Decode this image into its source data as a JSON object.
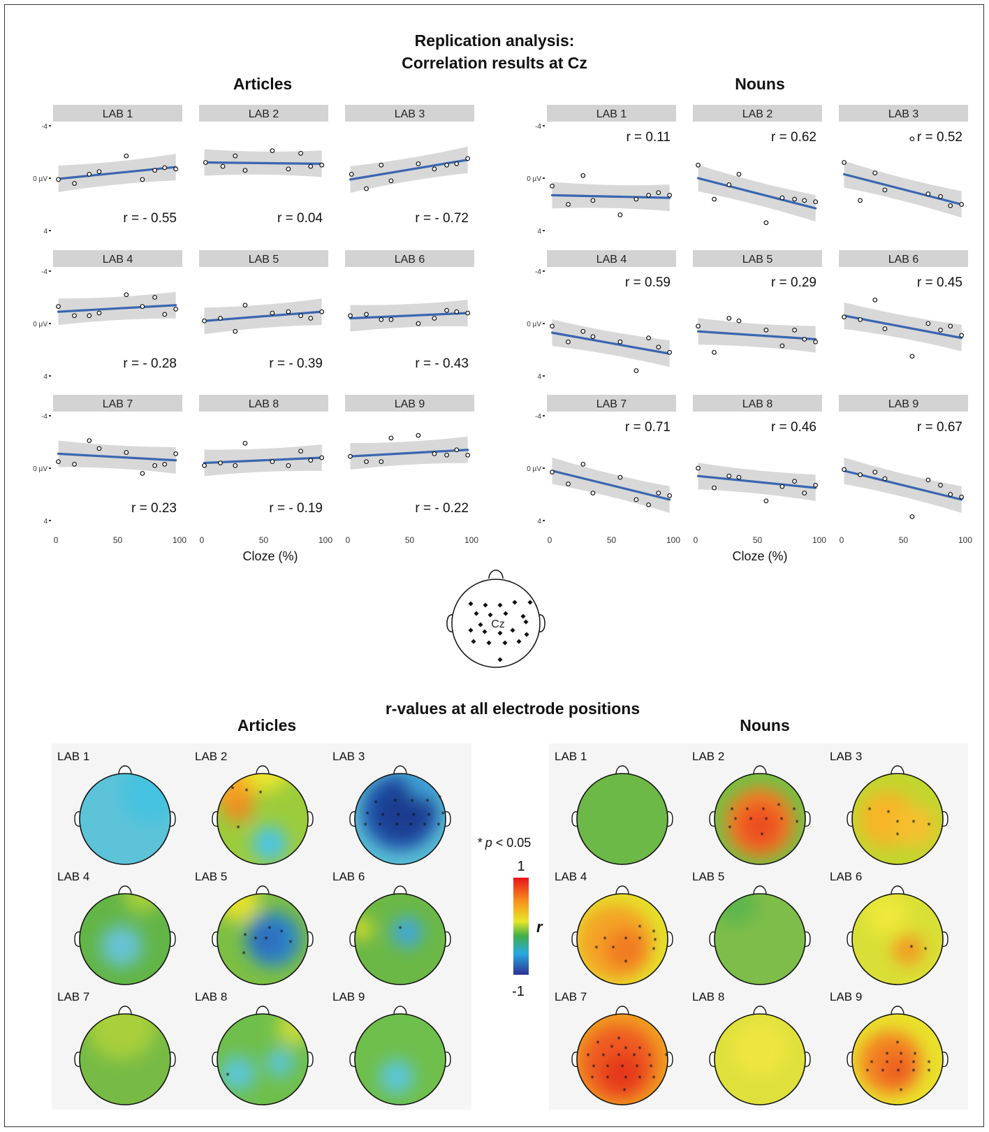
{
  "titles": {
    "main_line1": "Replication analysis:",
    "main_line2": "Correlation results at Cz",
    "articles": "Articles",
    "nouns": "Nouns",
    "topo_title": "r-values at all electrode positions",
    "xlabel": "Cloze (%)",
    "cz_label": "Cz"
  },
  "legend": {
    "sig_star": "*",
    "sig_p": "p",
    "sig_rest": " < 0.05",
    "max": "1",
    "min": "-1",
    "var": "r"
  },
  "colors": {
    "fit_line": "#3a66b0",
    "ci_band": "#d4d4d4",
    "strip": "#d3d3d3",
    "panel_bg": "#f5f5f5"
  },
  "chart_data": [
    {
      "type": "scatter",
      "title": "Articles",
      "xlabel": "Cloze (%)",
      "ylabel": "",
      "xlim": [
        0,
        100
      ],
      "ylim": [
        -4,
        4
      ],
      "y_reversed": true,
      "y_ticks": [
        "-4",
        "0 µV",
        "4"
      ],
      "x_ticks": [
        "0",
        "50",
        "100"
      ],
      "panels": [
        {
          "label": "LAB 1",
          "r": "r = - 0.55",
          "pos": "bottom",
          "x": [
            2,
            15,
            27,
            35,
            57,
            70,
            80,
            88,
            97
          ],
          "y": [
            0.1,
            0.4,
            -0.3,
            -0.5,
            -1.7,
            0.1,
            -0.6,
            -0.8,
            -0.7
          ],
          "fit": [
            0.05,
            -0.85
          ]
        },
        {
          "label": "LAB 2",
          "r": "r = 0.04",
          "pos": "bottom",
          "x": [
            3,
            17,
            27,
            35,
            57,
            70,
            80,
            88,
            97
          ],
          "y": [
            -1.2,
            -0.9,
            -1.7,
            -0.6,
            -2.1,
            -0.7,
            -1.9,
            -0.9,
            -1.0
          ],
          "fit": [
            -1.2,
            -1.1
          ]
        },
        {
          "label": "LAB 3",
          "r": "r = - 0.72",
          "pos": "bottom",
          "x": [
            3,
            15,
            27,
            35,
            57,
            70,
            80,
            88,
            97
          ],
          "y": [
            -0.3,
            0.8,
            -1.0,
            0.2,
            -1.1,
            -0.7,
            -1.0,
            -1.1,
            -1.5
          ],
          "fit": [
            0.1,
            -1.4
          ]
        },
        {
          "label": "LAB 4",
          "r": "r = - 0.28",
          "pos": "bottom",
          "x": [
            2,
            15,
            27,
            35,
            57,
            70,
            80,
            88,
            97
          ],
          "y": [
            -1.3,
            -0.6,
            -0.6,
            -0.8,
            -2.2,
            -1.3,
            -2.0,
            -0.7,
            -1.1
          ],
          "fit": [
            -0.9,
            -1.4
          ]
        },
        {
          "label": "LAB 5",
          "r": "r = - 0.39",
          "pos": "bottom",
          "x": [
            2,
            15,
            27,
            35,
            57,
            70,
            80,
            88,
            97
          ],
          "y": [
            -0.2,
            -0.4,
            0.6,
            -1.4,
            -0.8,
            -0.9,
            -0.6,
            -0.4,
            -0.9
          ],
          "fit": [
            -0.2,
            -0.9
          ]
        },
        {
          "label": "LAB 6",
          "r": "r = - 0.43",
          "pos": "bottom",
          "x": [
            2,
            15,
            27,
            35,
            57,
            70,
            80,
            88,
            97
          ],
          "y": [
            -0.6,
            -0.7,
            -0.3,
            -0.3,
            0.0,
            -0.4,
            -1.0,
            -0.9,
            -0.8
          ],
          "fit": [
            -0.4,
            -0.8
          ]
        },
        {
          "label": "LAB 7",
          "r": "r = 0.23",
          "pos": "bottom",
          "x": [
            2,
            15,
            27,
            35,
            57,
            70,
            80,
            88,
            97
          ],
          "y": [
            -0.5,
            -0.3,
            -2.1,
            -1.5,
            -1.2,
            0.4,
            -0.2,
            -0.3,
            -1.1
          ],
          "fit": [
            -1.1,
            -0.6
          ]
        },
        {
          "label": "LAB 8",
          "r": "r = - 0.19",
          "pos": "bottom",
          "x": [
            2,
            15,
            27,
            35,
            57,
            70,
            80,
            88,
            97
          ],
          "y": [
            -0.2,
            -0.4,
            -0.2,
            -1.9,
            -0.5,
            -0.2,
            -1.3,
            -0.6,
            -0.8
          ],
          "fit": [
            -0.4,
            -0.8
          ]
        },
        {
          "label": "LAB 9",
          "r": "r = - 0.22",
          "pos": "bottom",
          "x": [
            2,
            15,
            27,
            35,
            57,
            70,
            80,
            88,
            97
          ],
          "y": [
            -0.9,
            -0.5,
            -0.5,
            -2.3,
            -2.5,
            -1.1,
            -1.0,
            -1.4,
            -1.0
          ],
          "fit": [
            -0.9,
            -1.4
          ]
        }
      ]
    },
    {
      "type": "scatter",
      "title": "Nouns",
      "xlabel": "Cloze (%)",
      "ylabel": "",
      "xlim": [
        0,
        100
      ],
      "ylim": [
        -4,
        4
      ],
      "y_reversed": true,
      "y_ticks": [
        "-4",
        "0 µV",
        "4"
      ],
      "x_ticks": [
        "0",
        "50",
        "100"
      ],
      "panels": [
        {
          "label": "LAB 1",
          "r": "r = 0.11",
          "pos": "top",
          "x": [
            2,
            15,
            27,
            35,
            57,
            70,
            80,
            88,
            97
          ],
          "y": [
            0.6,
            2.0,
            -0.2,
            1.7,
            2.8,
            1.6,
            1.3,
            1.1,
            1.3
          ],
          "fit": [
            1.3,
            1.5
          ]
        },
        {
          "label": "LAB 2",
          "r": "r = 0.62",
          "pos": "top",
          "x": [
            2,
            15,
            27,
            35,
            57,
            70,
            80,
            88,
            97
          ],
          "y": [
            -1.0,
            1.6,
            0.5,
            -0.3,
            3.4,
            1.5,
            1.6,
            1.7,
            1.8
          ],
          "fit": [
            0.0,
            2.3
          ]
        },
        {
          "label": "LAB 3",
          "r": "r = 0.52",
          "pos": "top",
          "x": [
            2,
            15,
            27,
            35,
            57,
            70,
            80,
            88,
            97
          ],
          "y": [
            -1.2,
            1.7,
            -0.4,
            0.9,
            -3.0,
            1.2,
            1.4,
            2.1,
            2.0
          ],
          "fit": [
            -0.3,
            2.0
          ]
        },
        {
          "label": "LAB 4",
          "r": "r = 0.59",
          "pos": "top",
          "x": [
            2,
            15,
            27,
            35,
            57,
            70,
            80,
            88,
            97
          ],
          "y": [
            0.2,
            1.4,
            0.6,
            1.0,
            1.4,
            3.6,
            1.1,
            1.8,
            2.2
          ],
          "fit": [
            0.7,
            2.3
          ]
        },
        {
          "label": "LAB 5",
          "r": "r = 0.29",
          "pos": "top",
          "x": [
            2,
            15,
            27,
            35,
            57,
            70,
            80,
            88,
            97
          ],
          "y": [
            0.2,
            2.2,
            -0.4,
            -0.2,
            0.5,
            1.7,
            0.5,
            1.2,
            1.4
          ],
          "fit": [
            0.6,
            1.2
          ]
        },
        {
          "label": "LAB 6",
          "r": "r = 0.45",
          "pos": "top",
          "x": [
            2,
            15,
            27,
            35,
            57,
            70,
            80,
            88,
            97
          ],
          "y": [
            -0.5,
            -0.3,
            -1.8,
            0.4,
            2.5,
            0.0,
            0.5,
            0.2,
            0.9
          ],
          "fit": [
            -0.6,
            1.1
          ]
        },
        {
          "label": "LAB 7",
          "r": "r = 0.71",
          "pos": "top",
          "x": [
            2,
            15,
            27,
            35,
            57,
            70,
            80,
            88,
            97
          ],
          "y": [
            0.3,
            1.2,
            -0.3,
            1.9,
            0.7,
            2.4,
            2.8,
            1.9,
            2.1
          ],
          "fit": [
            0.2,
            2.4
          ]
        },
        {
          "label": "LAB 8",
          "r": "r = 0.46",
          "pos": "top",
          "x": [
            2,
            15,
            27,
            35,
            57,
            70,
            80,
            88,
            97
          ],
          "y": [
            0.0,
            1.5,
            0.6,
            0.7,
            2.5,
            1.4,
            1.0,
            1.9,
            1.3
          ],
          "fit": [
            0.6,
            1.5
          ]
        },
        {
          "label": "LAB 9",
          "r": "r = 0.67",
          "pos": "top",
          "x": [
            2,
            15,
            27,
            35,
            57,
            70,
            80,
            88,
            97
          ],
          "y": [
            0.1,
            0.5,
            0.3,
            0.8,
            3.7,
            0.9,
            1.3,
            2.0,
            2.2
          ],
          "fit": [
            0.2,
            2.4
          ]
        }
      ]
    }
  ],
  "topo_labels": [
    "LAB 1",
    "LAB 2",
    "LAB 3",
    "LAB 4",
    "LAB 5",
    "LAB 6",
    "LAB 7",
    "LAB 8",
    "LAB 9"
  ]
}
